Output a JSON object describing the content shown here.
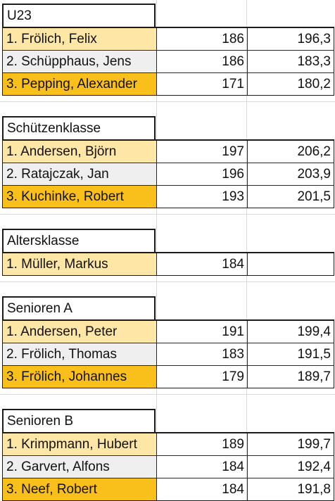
{
  "colors": {
    "place_1": "#fde6a6",
    "place_2": "#efefef",
    "place_3": "#f9bf1a"
  },
  "groups": [
    {
      "title": "U23",
      "rows": [
        {
          "name": "1. Frölich, Felix",
          "score_a": "186",
          "score_b": "196,3"
        },
        {
          "name": "2. Schüpphaus, Jens",
          "score_a": "186",
          "score_b": "183,3"
        },
        {
          "name": "3. Pepping, Alexander",
          "score_a": "171",
          "score_b": "180,2"
        }
      ]
    },
    {
      "title": "Schützenklasse",
      "rows": [
        {
          "name": "1. Andersen, Björn",
          "score_a": "197",
          "score_b": "206,2"
        },
        {
          "name": "2. Ratajczak, Jan",
          "score_a": "196",
          "score_b": "203,9"
        },
        {
          "name": "3. Kuchinke, Robert",
          "score_a": "193",
          "score_b": "201,5"
        }
      ]
    },
    {
      "title": "Altersklasse",
      "rows": [
        {
          "name": "1. Müller, Markus",
          "score_a": "184",
          "score_b": ""
        }
      ]
    },
    {
      "title": "Senioren A",
      "rows": [
        {
          "name": "1. Andersen, Peter",
          "score_a": "191",
          "score_b": "199,4"
        },
        {
          "name": "2. Frölich, Thomas",
          "score_a": "183",
          "score_b": "191,5"
        },
        {
          "name": "3. Frölich, Johannes",
          "score_a": "179",
          "score_b": "189,7"
        }
      ]
    },
    {
      "title": "Senioren B",
      "rows": [
        {
          "name": "1. Krimpmann, Hubert",
          "score_a": "189",
          "score_b": "199,7"
        },
        {
          "name": "2. Garvert, Alfons",
          "score_a": "184",
          "score_b": "192,4"
        },
        {
          "name": "3. Neef, Robert",
          "score_a": "184",
          "score_b": "191,8"
        }
      ]
    }
  ]
}
